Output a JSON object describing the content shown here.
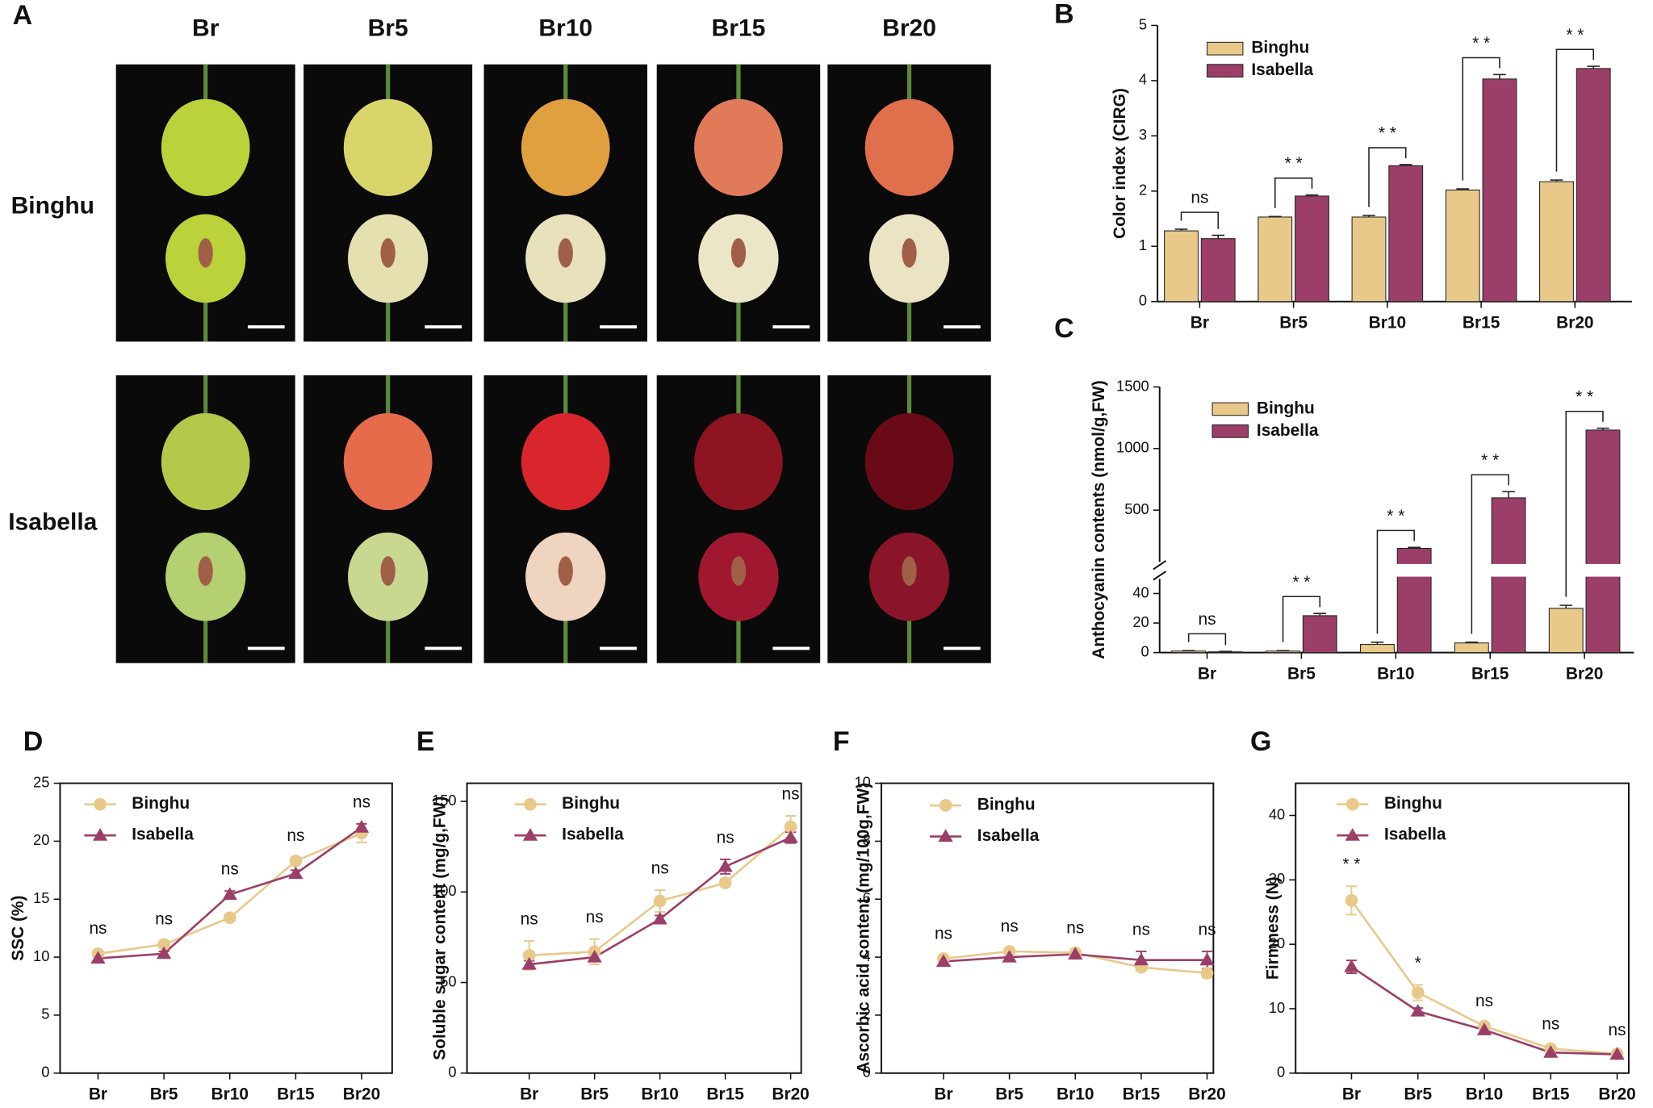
{
  "panel_a": {
    "panel": "A",
    "columns": [
      "Br",
      "Br5",
      "Br10",
      "Br15",
      "Br20"
    ],
    "rows": [
      "Binghu",
      "Isabella"
    ]
  },
  "chart_data": [
    {
      "type": "bar",
      "panel": "B",
      "ylabel": "Color index (CIRG)",
      "categories": [
        "Br",
        "Br5",
        "Br10",
        "Br15",
        "Br20"
      ],
      "series": [
        {
          "name": "Binghu",
          "color": "#e8c98a",
          "values": [
            1.28,
            1.53,
            1.53,
            2.02,
            2.17
          ],
          "errors": [
            0.03,
            0.01,
            0.03,
            0.02,
            0.03
          ]
        },
        {
          "name": "Isabella",
          "color": "#9c3f68",
          "values": [
            1.14,
            1.91,
            2.46,
            4.03,
            4.22
          ],
          "errors": [
            0.06,
            0.02,
            0.02,
            0.08,
            0.04
          ]
        }
      ],
      "annotations": [
        "ns",
        "* *",
        "* *",
        "* *",
        "* *"
      ],
      "ylim": [
        0,
        5
      ],
      "yticks": [
        0,
        1,
        2,
        3,
        4,
        5
      ]
    },
    {
      "type": "bar",
      "panel": "C",
      "ylabel": "Anthocyanin contents (nmol/g,FW)",
      "categories": [
        "Br",
        "Br5",
        "Br10",
        "Br15",
        "Br20"
      ],
      "series": [
        {
          "name": "Binghu",
          "color": "#e8c98a",
          "values": [
            1,
            1,
            5.5,
            6.5,
            30
          ],
          "errors": [
            0.3,
            0.3,
            1.5,
            0.5,
            2
          ]
        },
        {
          "name": "Isabella",
          "color": "#9c3f68",
          "values": [
            0.5,
            25,
            190,
            600,
            1150
          ],
          "errors": [
            0.3,
            1.5,
            8,
            50,
            15
          ]
        }
      ],
      "annotations": [
        "ns",
        "* *",
        "* *",
        "* *",
        "* *"
      ],
      "ylim_lower": [
        0,
        50
      ],
      "ylim_upper": [
        80,
        1500
      ],
      "yticks": [
        0,
        20,
        40,
        500,
        1000,
        1500
      ]
    },
    {
      "type": "line",
      "panel": "D",
      "ylabel": "SSC (%)",
      "categories": [
        "Br",
        "Br5",
        "Br10",
        "Br15",
        "Br20"
      ],
      "series": [
        {
          "name": "Binghu",
          "color": "#e8c98a",
          "marker": "circle",
          "values": [
            10.3,
            11.1,
            13.4,
            18.3,
            20.7
          ],
          "errors": [
            0.3,
            0.3,
            0.3,
            0.3,
            0.8
          ]
        },
        {
          "name": "Isabella",
          "color": "#9c3f68",
          "marker": "triangle",
          "values": [
            9.9,
            10.3,
            15.4,
            17.2,
            21.2
          ],
          "errors": [
            0.2,
            0.2,
            0.3,
            0.3,
            0.3
          ]
        }
      ],
      "annotations": [
        "ns",
        "ns",
        "ns",
        "ns",
        "ns"
      ],
      "ylim": [
        0,
        25
      ],
      "yticks": [
        0,
        5,
        10,
        15,
        20,
        25
      ]
    },
    {
      "type": "line",
      "panel": "E",
      "ylabel": "Soluble sugar content (mg/g,FW)",
      "categories": [
        "Br",
        "Br5",
        "Br10",
        "Br15",
        "Br20"
      ],
      "series": [
        {
          "name": "Binghu",
          "color": "#e8c98a",
          "marker": "circle",
          "values": [
            65,
            67,
            95,
            105,
            136
          ],
          "errors": [
            8,
            7,
            6,
            2,
            6
          ]
        },
        {
          "name": "Isabella",
          "color": "#9c3f68",
          "marker": "triangle",
          "values": [
            60,
            64,
            85,
            114,
            130
          ],
          "errors": [
            2,
            2,
            2,
            4,
            3
          ]
        }
      ],
      "annotations": [
        "ns",
        "ns",
        "ns",
        "ns",
        "ns"
      ],
      "ylim": [
        0,
        160
      ],
      "yticks": [
        0,
        50,
        100,
        150
      ]
    },
    {
      "type": "line",
      "panel": "F",
      "ylabel": "Ascorbic acid content (mg/100g,FW)",
      "categories": [
        "Br",
        "Br5",
        "Br10",
        "Br15",
        "Br20"
      ],
      "series": [
        {
          "name": "Binghu",
          "color": "#e8c98a",
          "marker": "circle",
          "values": [
            3.95,
            4.2,
            4.15,
            3.65,
            3.45
          ],
          "errors": [
            0.1,
            0.1,
            0.1,
            0.1,
            0.15
          ]
        },
        {
          "name": "Isabella",
          "color": "#9c3f68",
          "marker": "triangle",
          "values": [
            3.85,
            4.0,
            4.1,
            3.9,
            3.9
          ],
          "errors": [
            0.1,
            0.1,
            0.1,
            0.3,
            0.3
          ]
        }
      ],
      "annotations": [
        "ns",
        "ns",
        "ns",
        "ns",
        "ns"
      ],
      "ylim": [
        0,
        10
      ],
      "yticks": [
        0,
        2,
        4,
        6,
        8,
        10
      ]
    },
    {
      "type": "line",
      "panel": "G",
      "ylabel": "Firmness (N)",
      "categories": [
        "Br",
        "Br5",
        "Br10",
        "Br15",
        "Br20"
      ],
      "series": [
        {
          "name": "Binghu",
          "color": "#e8c98a",
          "marker": "circle",
          "values": [
            26.8,
            12.5,
            7.3,
            3.8,
            3.0
          ],
          "errors": [
            2.2,
            1.2,
            0.5,
            0.4,
            0.3
          ]
        },
        {
          "name": "Isabella",
          "color": "#9c3f68",
          "marker": "triangle",
          "values": [
            16.5,
            9.6,
            6.7,
            3.2,
            2.9
          ],
          "errors": [
            1.0,
            0.5,
            0.3,
            0.2,
            0.2
          ]
        }
      ],
      "annotations": [
        "* *",
        "*",
        "ns",
        "ns",
        "ns"
      ],
      "ylim": [
        0,
        45
      ],
      "yticks": [
        0,
        10,
        20,
        30,
        40
      ]
    }
  ]
}
